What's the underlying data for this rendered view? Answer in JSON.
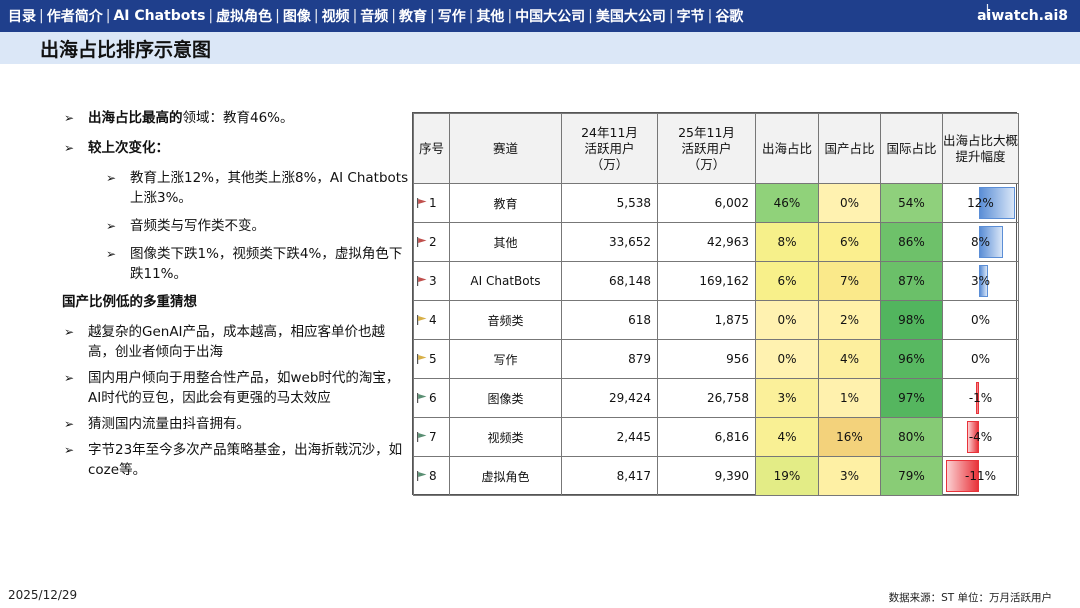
{
  "nav": {
    "items": [
      "目录",
      "作者简介",
      "AI Chatbots",
      "虚拟角色",
      "图像",
      "视频",
      "音频",
      "教育",
      "写作",
      "其他",
      "中国大公司",
      "美国大公司",
      "字节",
      "谷歌"
    ],
    "brand": "aiwatch.ai",
    "page": "8"
  },
  "title": "出海占比排序示意图",
  "left": {
    "b1_bold": "出海占比最高的",
    "b1_rest": "领域：教育46%。",
    "b2": "较上次变化：",
    "sub1": "教育上涨12%，其他类上涨8%，AI Chatbots上涨3%。",
    "sub2": "音频类与写作类不变。",
    "sub3": "图像类下跌1%，视频类下跌4%，虚拟角色下跌11%。",
    "heading": "国产比例低的多重猜想",
    "g1": "越复杂的GenAI产品，成本越高，相应客单价也越高，创业者倾向于出海",
    "g2": "国内用户倾向于用整合性产品，如web时代的淘宝，AI时代的豆包，因此会有更强的马太效应",
    "g3": "猜测国内流量由抖音拥有。",
    "g4": "字节23年至今多次产品策略基金，出海折戟沉沙，如coze等。"
  },
  "table": {
    "headers": [
      "序号",
      "赛道",
      "24年11月 活跃用户 （万）",
      "25年11月 活跃用户 （万）",
      "出海占比",
      "国产占比",
      "国际占比",
      "出海占比大概提升幅度"
    ],
    "rows": [
      {
        "idx": "1",
        "name": "教育",
        "u24": "5,538",
        "u25": "6,002",
        "out": "46%",
        "cn": "0%",
        "intl": "54%",
        "chg": "12%",
        "chg_v": 12,
        "flag": "#c0504d",
        "out_bg": "#90d27a",
        "cn_bg": "#fff2b0",
        "intl_bg": "#8fd07c"
      },
      {
        "idx": "2",
        "name": "其他",
        "u24": "33,652",
        "u25": "42,963",
        "out": "8%",
        "cn": "6%",
        "intl": "86%",
        "chg": "8%",
        "chg_v": 8,
        "flag": "#c0504d",
        "out_bg": "#f6f08a",
        "cn_bg": "#fbef8e",
        "intl_bg": "#6ec16a"
      },
      {
        "idx": "3",
        "name": "AI ChatBots",
        "u24": "68,148",
        "u25": "169,162",
        "out": "6%",
        "cn": "7%",
        "intl": "87%",
        "chg": "3%",
        "chg_v": 3,
        "flag": "#c0504d",
        "out_bg": "#f8f08a",
        "cn_bg": "#fae98a",
        "intl_bg": "#6bc069"
      },
      {
        "idx": "4",
        "name": "音频类",
        "u24": "618",
        "u25": "1,875",
        "out": "0%",
        "cn": "2%",
        "intl": "98%",
        "chg": "0%",
        "chg_v": 0,
        "flag": "#d8b048",
        "out_bg": "#fff2b0",
        "cn_bg": "#fff1a8",
        "intl_bg": "#52b55e"
      },
      {
        "idx": "5",
        "name": "写作",
        "u24": "879",
        "u25": "956",
        "out": "0%",
        "cn": "4%",
        "intl": "96%",
        "chg": "0%",
        "chg_v": 0,
        "flag": "#d8b048",
        "out_bg": "#fff2b0",
        "cn_bg": "#fdef9e",
        "intl_bg": "#58b861"
      },
      {
        "idx": "6",
        "name": "图像类",
        "u24": "29,424",
        "u25": "26,758",
        "out": "3%",
        "cn": "1%",
        "intl": "97%",
        "chg": "-1%",
        "chg_v": -1,
        "flag": "#5a8f73",
        "out_bg": "#fbf09a",
        "cn_bg": "#fff1ad",
        "intl_bg": "#55b65f"
      },
      {
        "idx": "7",
        "name": "视频类",
        "u24": "2,445",
        "u25": "6,816",
        "out": "4%",
        "cn": "16%",
        "intl": "80%",
        "chg": "-4%",
        "chg_v": -4,
        "flag": "#5a8f73",
        "out_bg": "#f9f094",
        "cn_bg": "#f3d27b",
        "intl_bg": "#86cb75"
      },
      {
        "idx": "8",
        "name": "虚拟角色",
        "u24": "8,417",
        "u25": "9,390",
        "out": "19%",
        "cn": "3%",
        "intl": "79%",
        "chg": "-11%",
        "chg_v": -11,
        "flag": "#5a8f73",
        "out_bg": "#e3ec86",
        "cn_bg": "#fef0a4",
        "intl_bg": "#89cc76"
      }
    ]
  },
  "footer": {
    "date": "2025/12/29",
    "source": "数据来源：ST   单位：万月活跃用户"
  },
  "colors": {
    "topbar": "#1f3f8c",
    "titleband": "#dbe7f7",
    "pos_bar": "#5b8ed6",
    "neg_bar": "#e8333a"
  }
}
